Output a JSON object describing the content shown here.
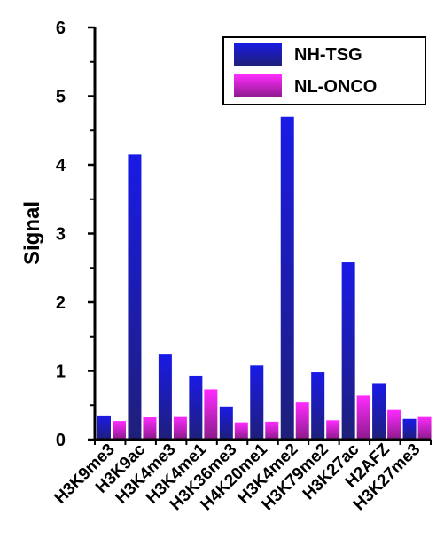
{
  "chart_data": {
    "type": "bar",
    "title": "",
    "xlabel": "",
    "ylabel": "Signal",
    "ylim": [
      0,
      6
    ],
    "yticks": [
      0,
      1,
      2,
      3,
      4,
      5,
      6
    ],
    "grid": false,
    "legend_position": "top-right",
    "categories": [
      "H3K9me3",
      "H3K9ac",
      "H3K4me3",
      "H3K4me1",
      "H3K36me3",
      "H4K20me1",
      "H3K4me2",
      "H3K79me2",
      "H3K27ac",
      "H2AFZ",
      "H3K27me3"
    ],
    "series": [
      {
        "name": "NH-TSG",
        "color_top": "#1a1ae6",
        "color_bottom": "#1f1f7a",
        "values": [
          0.35,
          4.15,
          1.25,
          0.93,
          0.48,
          1.08,
          4.7,
          0.98,
          2.58,
          0.82,
          0.3
        ]
      },
      {
        "name": "NL-ONCO",
        "color_top": "#ff2bff",
        "color_bottom": "#8a1a8a",
        "values": [
          0.27,
          0.33,
          0.34,
          0.73,
          0.25,
          0.26,
          0.54,
          0.28,
          0.64,
          0.43,
          0.34
        ]
      }
    ]
  }
}
